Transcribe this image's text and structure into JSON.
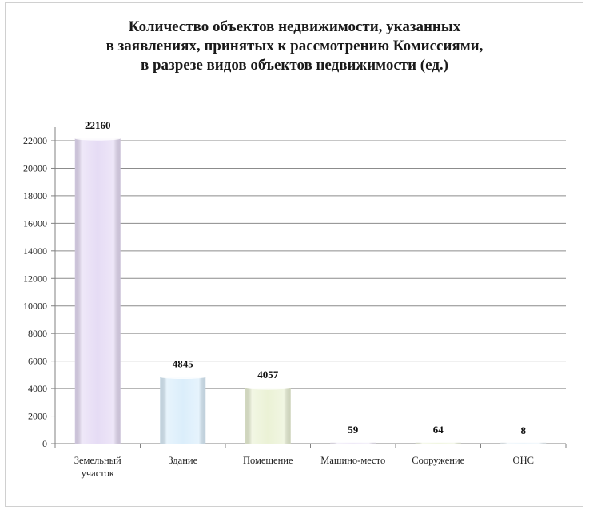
{
  "chart_data": {
    "type": "bar",
    "title_lines": [
      "Количество объектов недвижимости, указанных",
      "в заявлениях, принятых к рассмотрению Комиссиями,",
      "в разрезе видов объектов недвижимости (ед.)"
    ],
    "categories": [
      [
        "Земельный",
        "участок"
      ],
      [
        "Здание"
      ],
      [
        "Помещение"
      ],
      [
        "Машино-место"
      ],
      [
        "Сооружение"
      ],
      [
        "ОНС"
      ]
    ],
    "values": [
      22160,
      4845,
      4057,
      59,
      64,
      8
    ],
    "data_labels": [
      "22160",
      "4845",
      "4057",
      "59",
      "64",
      "8"
    ],
    "bar_colors": [
      "#e6dcf5",
      "#dbeefb",
      "#ebf2d6",
      "#efeaf7",
      "#f1f6e2",
      "#eef6fb"
    ],
    "ylim": [
      0,
      22000
    ],
    "y_ticks": [
      0,
      2000,
      4000,
      6000,
      8000,
      10000,
      12000,
      14000,
      16000,
      18000,
      20000,
      22000
    ],
    "grid": true,
    "legend": "none"
  }
}
